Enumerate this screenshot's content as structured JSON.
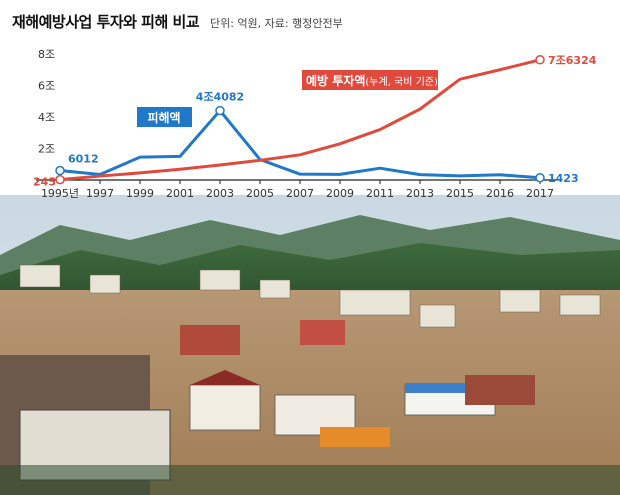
{
  "title": "재해예방사업 투자와 피해 비교",
  "subtitle": "단위: 억원, 자료: 행정안전부",
  "chart_data": {
    "type": "line",
    "x": [
      "1995년",
      "1997",
      "1999",
      "2001",
      "2003",
      "2005",
      "2007",
      "2009",
      "2011",
      "2013",
      "2015",
      "2016",
      "2017"
    ],
    "y_tick_labels": [
      "2조",
      "4조",
      "6조",
      "8조"
    ],
    "ylim": [
      0,
      80000
    ],
    "grid": false,
    "series": [
      {
        "name": "피해액",
        "color": "#1f78c8",
        "values": [
          6012,
          3500,
          14500,
          15000,
          44082,
          13000,
          3700,
          3600,
          7500,
          3400,
          2600,
          3300,
          1423
        ],
        "labels": {
          "0": "6012",
          "4": "4조4082",
          "12": "1423"
        }
      },
      {
        "name": "예방 투자액",
        "sub_label": "(누계, 국비 기준)",
        "color": "#e04a3c",
        "values": [
          245,
          2500,
          4500,
          6800,
          9500,
          12500,
          16000,
          23000,
          32000,
          45000,
          64000,
          70000,
          76324
        ],
        "labels": {
          "0": "245",
          "12": "7조6324"
        }
      }
    ]
  },
  "photo": {
    "description_alt": "flooded town aerial"
  },
  "colors": {
    "damage": "#1f78c8",
    "investment": "#e04a3c",
    "axis": "#222222",
    "tick_text": "#333333"
  }
}
